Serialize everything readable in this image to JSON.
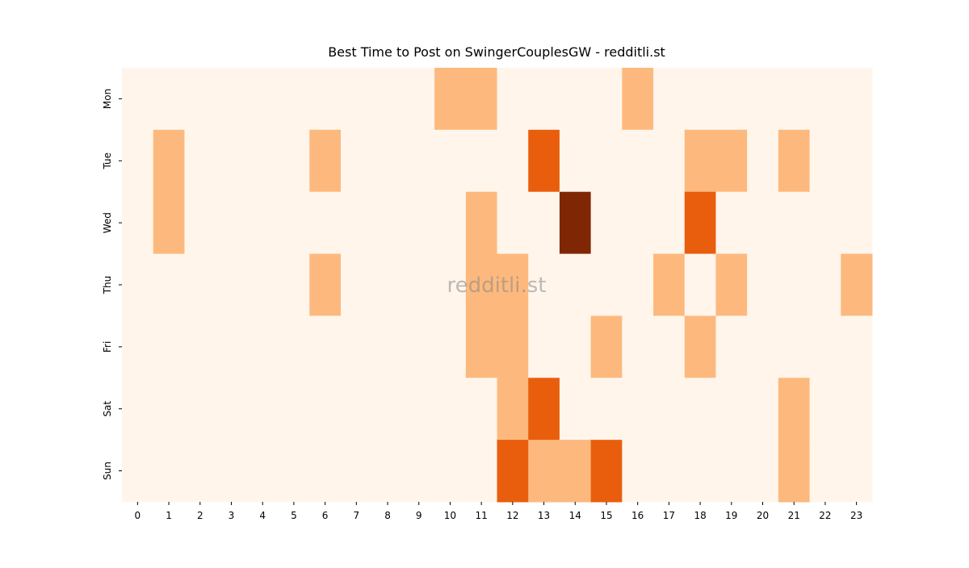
{
  "chart_data": {
    "type": "heatmap",
    "title": "Best Time to Post on SwingerCouplesGW - redditli.st",
    "watermark": "redditli.st",
    "x": [
      "0",
      "1",
      "2",
      "3",
      "4",
      "5",
      "6",
      "7",
      "8",
      "9",
      "10",
      "11",
      "12",
      "13",
      "14",
      "15",
      "16",
      "17",
      "18",
      "19",
      "20",
      "21",
      "22",
      "23"
    ],
    "y": [
      "Mon",
      "Tue",
      "Wed",
      "Thu",
      "Fri",
      "Sat",
      "Sun"
    ],
    "values": [
      [
        0,
        0,
        0,
        0,
        0,
        0,
        0,
        0,
        0,
        0,
        1,
        1,
        0,
        0,
        0,
        0,
        1,
        0,
        0,
        0,
        0,
        0,
        0,
        0
      ],
      [
        0,
        1,
        0,
        0,
        0,
        0,
        1,
        0,
        0,
        0,
        0,
        0,
        0,
        2,
        0,
        0,
        0,
        0,
        1,
        1,
        0,
        1,
        0,
        0
      ],
      [
        0,
        1,
        0,
        0,
        0,
        0,
        0,
        0,
        0,
        0,
        0,
        1,
        0,
        0,
        3,
        0,
        0,
        0,
        2,
        0,
        0,
        0,
        0,
        0
      ],
      [
        0,
        0,
        0,
        0,
        0,
        0,
        1,
        0,
        0,
        0,
        0,
        1,
        1,
        0,
        0,
        0,
        0,
        1,
        0,
        1,
        0,
        0,
        0,
        1
      ],
      [
        0,
        0,
        0,
        0,
        0,
        0,
        0,
        0,
        0,
        0,
        0,
        1,
        1,
        0,
        0,
        1,
        0,
        0,
        1,
        0,
        0,
        0,
        0,
        0
      ],
      [
        0,
        0,
        0,
        0,
        0,
        0,
        0,
        0,
        0,
        0,
        0,
        0,
        1,
        2,
        0,
        0,
        0,
        0,
        0,
        0,
        0,
        1,
        0,
        0
      ],
      [
        0,
        0,
        0,
        0,
        0,
        0,
        0,
        0,
        0,
        0,
        0,
        0,
        2,
        1,
        1,
        2,
        0,
        0,
        0,
        0,
        0,
        1,
        0,
        0
      ]
    ],
    "zlim": [
      0,
      3
    ],
    "colorscale": [
      "#fff5eb",
      "#fdb97d",
      "#e95e0d",
      "#7f2704"
    ]
  }
}
